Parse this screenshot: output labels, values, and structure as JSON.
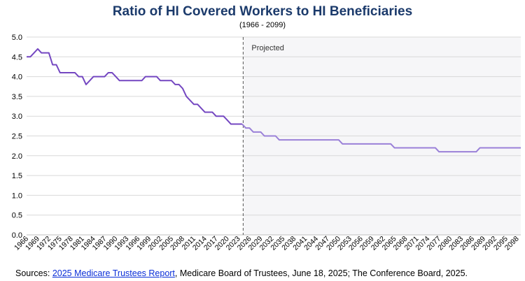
{
  "chart_data": {
    "type": "line",
    "title": "Ratio of HI Covered Workers to HI Beneficiaries",
    "subtitle": "(1966 - 2099)",
    "xlabel": "",
    "ylabel": "",
    "ylim": [
      0,
      5
    ],
    "yticks": [
      "0.0",
      "0.5",
      "1.0",
      "1.5",
      "2.0",
      "2.5",
      "3.0",
      "3.5",
      "4.0",
      "4.5",
      "5.0"
    ],
    "xlim": [
      1966,
      2099
    ],
    "xticks": [
      "1966",
      "1969",
      "1972",
      "1975",
      "1978",
      "1981",
      "1984",
      "1987",
      "1990",
      "1993",
      "1996",
      "1999",
      "2002",
      "2005",
      "2008",
      "2011",
      "2014",
      "2017",
      "2020",
      "2023",
      "2026",
      "2029",
      "2032",
      "2035",
      "2038",
      "2041",
      "2044",
      "2047",
      "2050",
      "2053",
      "2056",
      "2059",
      "2062",
      "2065",
      "2068",
      "2071",
      "2074",
      "2077",
      "2080",
      "2083",
      "2086",
      "2089",
      "2092",
      "2095",
      "2098"
    ],
    "grid": true,
    "projection_start": 2024,
    "projection_label": "Projected",
    "colors": {
      "historical": "#7447c1",
      "projected": "#9a80d8",
      "shade": "#f6f6f8",
      "divider": "#555555"
    },
    "series": [
      {
        "x": [
          1966,
          1967,
          1968,
          1969,
          1970,
          1971,
          1972,
          1973,
          1974,
          1975,
          1976,
          1977,
          1978,
          1979,
          1980,
          1981,
          1982,
          1983,
          1984,
          1985,
          1986,
          1987,
          1988,
          1989,
          1990,
          1991,
          1992,
          1993,
          1994,
          1995,
          1996,
          1997,
          1998,
          1999,
          2000,
          2001,
          2002,
          2003,
          2004,
          2005,
          2006,
          2007,
          2008,
          2009,
          2010,
          2011,
          2012,
          2013,
          2014,
          2015,
          2016,
          2017,
          2018,
          2019,
          2020,
          2021,
          2022,
          2023,
          2024
        ],
        "values": [
          4.5,
          4.5,
          4.6,
          4.7,
          4.6,
          4.6,
          4.6,
          4.3,
          4.3,
          4.1,
          4.1,
          4.1,
          4.1,
          4.1,
          4.0,
          4.0,
          3.8,
          3.9,
          4.0,
          4.0,
          4.0,
          4.0,
          4.1,
          4.1,
          4.0,
          3.9,
          3.9,
          3.9,
          3.9,
          3.9,
          3.9,
          3.9,
          4.0,
          4.0,
          4.0,
          4.0,
          3.9,
          3.9,
          3.9,
          3.9,
          3.8,
          3.8,
          3.7,
          3.5,
          3.4,
          3.3,
          3.3,
          3.2,
          3.1,
          3.1,
          3.1,
          3.0,
          3.0,
          3.0,
          2.9,
          2.8,
          2.8,
          2.8,
          2.8
        ]
      },
      {
        "x": [
          2024,
          2025,
          2026,
          2027,
          2028,
          2029,
          2030,
          2031,
          2032,
          2033,
          2034,
          2035,
          2036,
          2037,
          2038,
          2039,
          2040,
          2041,
          2042,
          2043,
          2044,
          2045,
          2046,
          2047,
          2048,
          2049,
          2050,
          2051,
          2052,
          2053,
          2054,
          2055,
          2056,
          2057,
          2058,
          2059,
          2060,
          2061,
          2062,
          2063,
          2064,
          2065,
          2066,
          2067,
          2068,
          2069,
          2070,
          2071,
          2072,
          2073,
          2074,
          2075,
          2076,
          2077,
          2078,
          2079,
          2080,
          2081,
          2082,
          2083,
          2084,
          2085,
          2086,
          2087,
          2088,
          2089,
          2090,
          2091,
          2092,
          2093,
          2094,
          2095,
          2096,
          2097,
          2098,
          2099
        ],
        "values": [
          2.8,
          2.7,
          2.7,
          2.6,
          2.6,
          2.6,
          2.5,
          2.5,
          2.5,
          2.5,
          2.4,
          2.4,
          2.4,
          2.4,
          2.4,
          2.4,
          2.4,
          2.4,
          2.4,
          2.4,
          2.4,
          2.4,
          2.4,
          2.4,
          2.4,
          2.4,
          2.4,
          2.3,
          2.3,
          2.3,
          2.3,
          2.3,
          2.3,
          2.3,
          2.3,
          2.3,
          2.3,
          2.3,
          2.3,
          2.3,
          2.3,
          2.2,
          2.2,
          2.2,
          2.2,
          2.2,
          2.2,
          2.2,
          2.2,
          2.2,
          2.2,
          2.2,
          2.2,
          2.1,
          2.1,
          2.1,
          2.1,
          2.1,
          2.1,
          2.1,
          2.1,
          2.1,
          2.1,
          2.1,
          2.2,
          2.2,
          2.2,
          2.2,
          2.2,
          2.2,
          2.2,
          2.2,
          2.2,
          2.2,
          2.2,
          2.2
        ]
      }
    ]
  },
  "sources": {
    "prefix": "Sources: ",
    "link_text": "2025 Medicare Trustees Report",
    "suffix": ", Medicare Board of Trustees, June 18, 2025; The Conference Board, 2025."
  }
}
